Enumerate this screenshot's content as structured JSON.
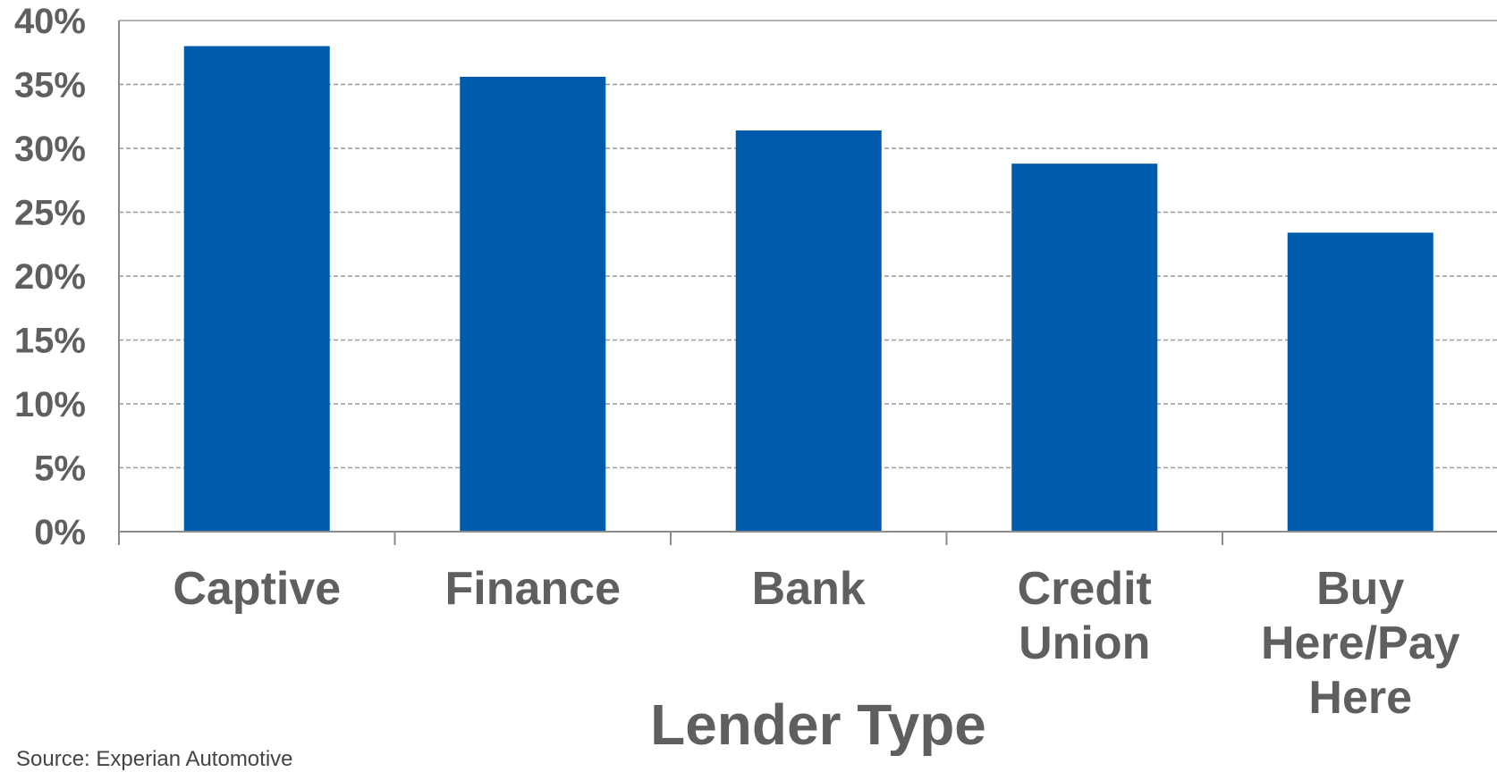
{
  "chart_data": {
    "type": "bar",
    "categories": [
      "Captive",
      "Finance",
      "Bank",
      "Credit Union",
      "Buy Here/Pay Here"
    ],
    "category_lines": [
      [
        "Captive"
      ],
      [
        "Finance"
      ],
      [
        "Bank"
      ],
      [
        "Credit",
        "Union"
      ],
      [
        "Buy",
        "Here/Pay",
        "Here"
      ]
    ],
    "values": [
      38.0,
      35.6,
      31.4,
      28.8,
      23.4
    ],
    "ylim": [
      0,
      40
    ],
    "yticks": [
      0,
      5,
      10,
      15,
      20,
      25,
      30,
      35,
      40
    ],
    "ytick_labels": [
      "0%",
      "5%",
      "10%",
      "15%",
      "20%",
      "25%",
      "30%",
      "35%",
      "40%"
    ],
    "xlabel": "Lender Type",
    "ylabel": "",
    "grid": true,
    "bar_color": "#005bac",
    "gridline_color": "#999999",
    "text_color": "#5f5f5f"
  },
  "source_text": "Source: Experian Automotive"
}
